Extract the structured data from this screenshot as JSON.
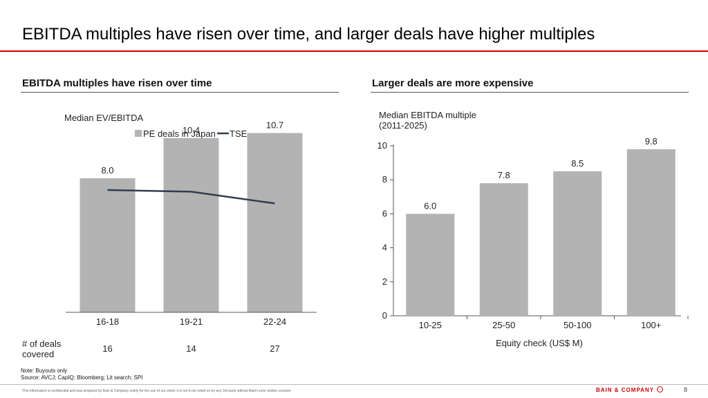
{
  "page": {
    "title": "EBITDA multiples have risen over time, and larger deals have higher multiples",
    "note_line1": "Note: Buyouts only",
    "note_line2": "Source: AVCJ; CapIQ; Bloomberg; Lit search; SPI",
    "footer": "This information is confidential and was prepared by Bain & Company solely for the use of our client; it is not to be relied on by any 3rd party without Bain's prior written consent",
    "logo": "BAIN & COMPANY",
    "page_number": "8"
  },
  "left_section": {
    "heading": "EBITDA multiples have risen over time",
    "deals_label_line1": "# of deals",
    "deals_label_line2": "covered",
    "deals_counts": [
      "16",
      "14",
      "27"
    ]
  },
  "right_section": {
    "heading": "Larger deals are more expensive"
  },
  "chart_data": [
    {
      "type": "bar",
      "title": "Median EV/EBITDA",
      "categories": [
        "16-18",
        "19-21",
        "22-24"
      ],
      "series": [
        {
          "name": "PE deals in Japan",
          "type": "bar",
          "values": [
            8.0,
            10.4,
            10.7
          ],
          "labels": [
            "8.0",
            "10.4",
            "10.7"
          ],
          "color": "#b3b3b3"
        },
        {
          "name": "TSE",
          "type": "line",
          "values": [
            7.3,
            7.2,
            6.5
          ],
          "color": "#2e3e50"
        }
      ],
      "ylim": [
        0,
        12
      ],
      "legend": "top",
      "grid": false
    },
    {
      "type": "bar",
      "ylabel_line1": "Median EBITDA multiple",
      "ylabel_line2": "(2011-2025)",
      "xlabel": "Equity check (US$ M)",
      "categories": [
        "10-25",
        "25-50",
        "50-100",
        "100+"
      ],
      "values": [
        6.0,
        7.8,
        8.5,
        9.8
      ],
      "labels": [
        "6.0",
        "7.8",
        "8.5",
        "9.8"
      ],
      "yticks": [
        "0",
        "2",
        "4",
        "6",
        "8",
        "10"
      ],
      "ylim": [
        0,
        10
      ],
      "color": "#b3b3b3",
      "grid": false
    }
  ]
}
